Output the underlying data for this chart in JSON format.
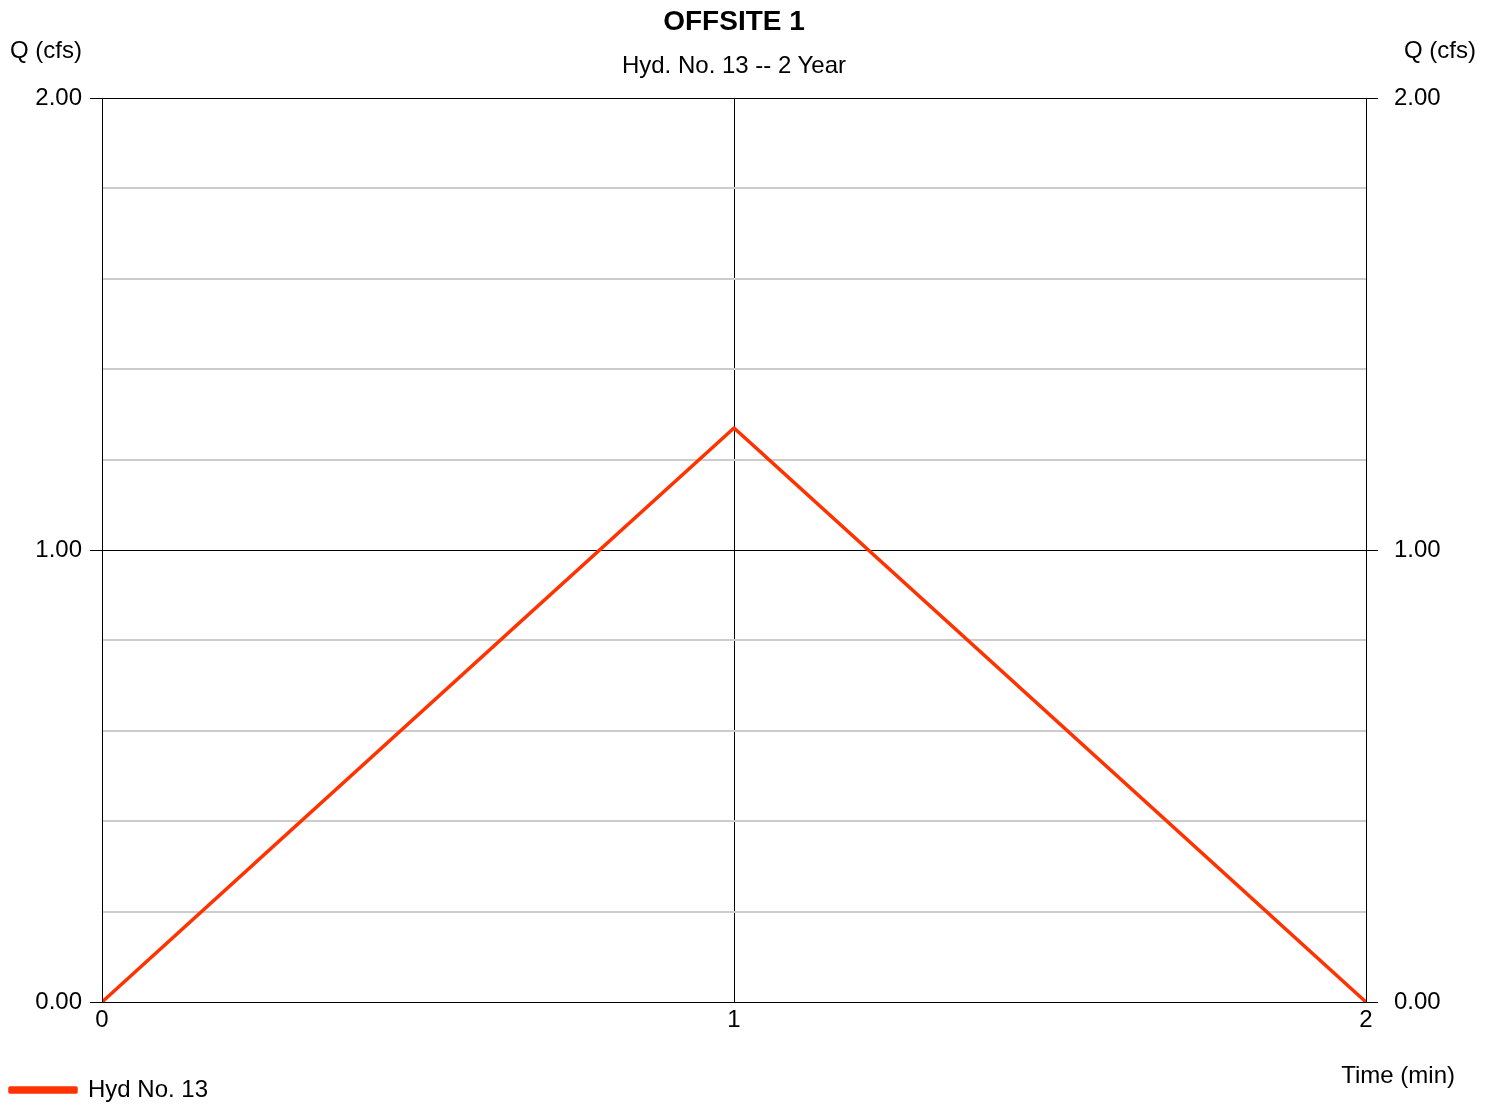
{
  "chart_data": {
    "type": "line",
    "title": "OFFSITE 1",
    "subtitle": "Hyd. No. 13 -- 2 Year",
    "xlabel": "Time (min)",
    "ylabel": "Q (cfs)",
    "y2label": "Q (cfs)",
    "x": [
      0,
      1,
      2
    ],
    "series": [
      {
        "name": "Hyd No. 13",
        "color": "#ff3300",
        "values": [
          0,
          1.27,
          0
        ]
      }
    ],
    "xlim": [
      0,
      2
    ],
    "xticks": [
      0,
      1,
      2
    ],
    "ylim": [
      0,
      2
    ],
    "yticks": [
      {
        "value": 0,
        "label": "0.00"
      },
      {
        "value": 0.2,
        "label": null
      },
      {
        "value": 0.4,
        "label": null
      },
      {
        "value": 0.6,
        "label": null
      },
      {
        "value": 0.8,
        "label": null
      },
      {
        "value": 1,
        "label": "1.00"
      },
      {
        "value": 1.2,
        "label": null
      },
      {
        "value": 1.4,
        "label": null
      },
      {
        "value": 1.6,
        "label": null
      },
      {
        "value": 1.8,
        "label": null
      },
      {
        "value": 2,
        "label": "2.00"
      }
    ],
    "y2lim": [
      0,
      2
    ],
    "y2ticks": [
      {
        "value": 0,
        "label": "0.00"
      },
      {
        "value": 1,
        "label": "1.00"
      },
      {
        "value": 2,
        "label": "2.00"
      }
    ],
    "grid": true,
    "legend": "bottom left"
  }
}
